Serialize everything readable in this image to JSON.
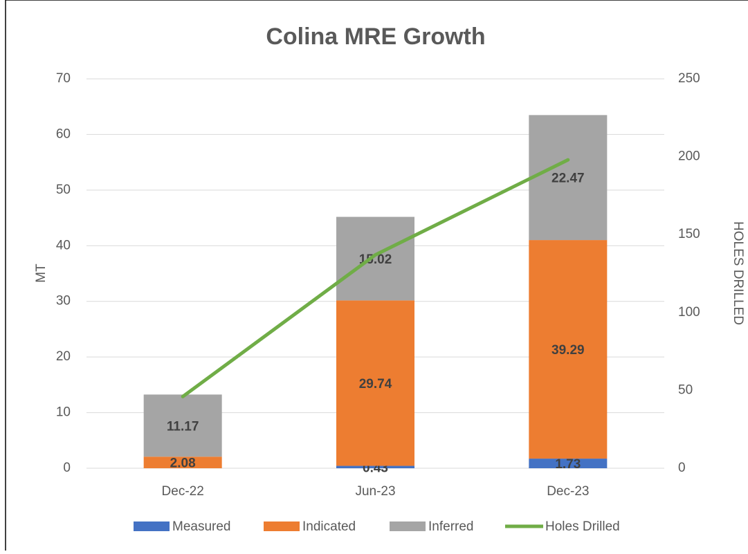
{
  "chart_data": {
    "type": "bar",
    "stacked": true,
    "title": "Colina MRE Growth",
    "y_label": "MT",
    "y2_label": "HOLES DRILLED",
    "categories": [
      "Dec-22",
      "Jun-23",
      "Dec-23"
    ],
    "series": [
      {
        "name": "Measured",
        "color": "#4472c4",
        "values": [
          null,
          0.43,
          1.73
        ]
      },
      {
        "name": "Indicated",
        "color": "#ed7d31",
        "values": [
          2.08,
          29.74,
          39.29
        ]
      },
      {
        "name": "Inferred",
        "color": "#a5a5a5",
        "values": [
          11.17,
          15.02,
          22.47
        ]
      },
      {
        "name": "Holes Drilled",
        "color": "#70ad47",
        "type": "line",
        "axis": "y2",
        "values": [
          46,
          137,
          198
        ]
      }
    ],
    "ylim": [
      0,
      70
    ],
    "yticks": [
      0,
      10,
      20,
      30,
      40,
      50,
      60,
      70
    ],
    "y2lim": [
      0,
      250
    ],
    "y2ticks": [
      0,
      50,
      100,
      150,
      200,
      250
    ],
    "grid": true,
    "legend": "bottom"
  }
}
